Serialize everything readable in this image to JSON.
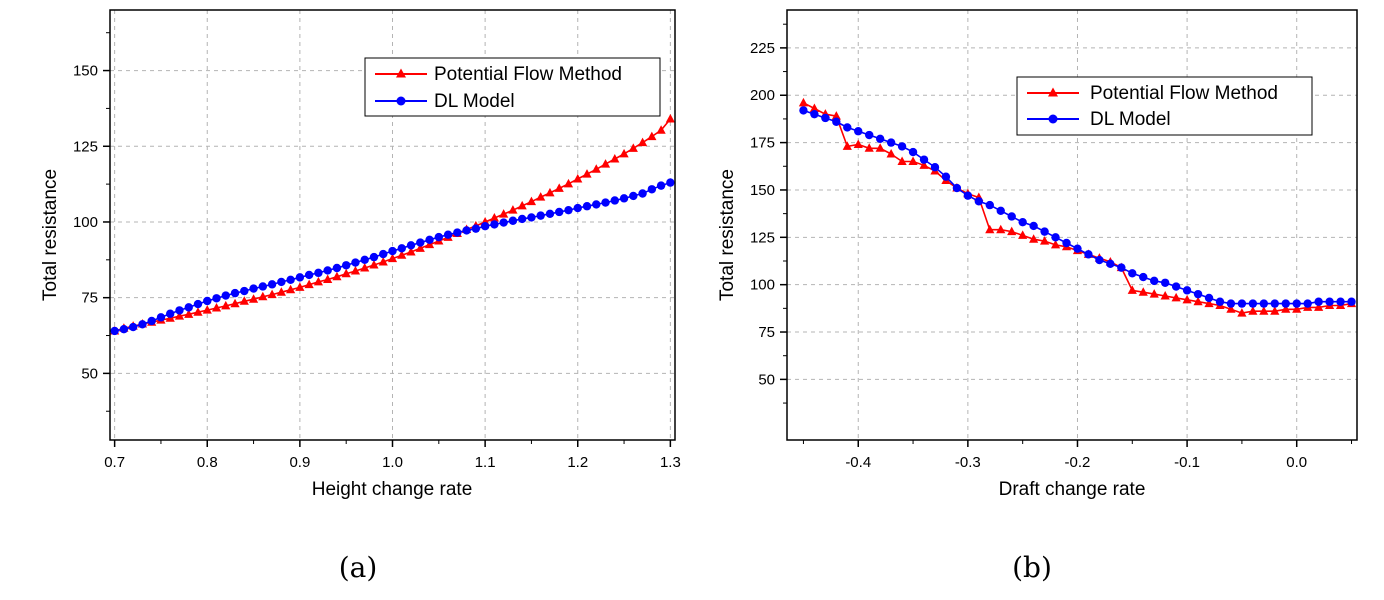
{
  "chart_data": [
    {
      "type": "line",
      "caption": "(a)",
      "xlabel": "Height change rate",
      "ylabel": "Total resistance",
      "xlim": [
        0.695,
        1.305
      ],
      "ylim": [
        28,
        170
      ],
      "xticks": [
        0.7,
        0.8,
        0.9,
        1.0,
        1.1,
        1.2,
        1.3
      ],
      "xtick_labels": [
        "0.7",
        "0.8",
        "0.9",
        "1.0",
        "1.1",
        "1.2",
        "1.3"
      ],
      "yticks": [
        50,
        75,
        100,
        125,
        150
      ],
      "ytick_labels": [
        "50",
        "75",
        "100",
        "125",
        "150"
      ],
      "grid": true,
      "legend_position": "top-right",
      "colors": {
        "Potential Flow Method": "#ff0000",
        "DL Model": "#0000ff"
      },
      "series": [
        {
          "name": "Potential Flow Method",
          "marker": "triangle",
          "x": [
            0.7,
            0.71,
            0.72,
            0.73,
            0.74,
            0.75,
            0.76,
            0.77,
            0.78,
            0.79,
            0.8,
            0.81,
            0.82,
            0.83,
            0.84,
            0.85,
            0.86,
            0.87,
            0.88,
            0.89,
            0.9,
            0.91,
            0.92,
            0.93,
            0.94,
            0.95,
            0.96,
            0.97,
            0.98,
            0.99,
            1.0,
            1.01,
            1.02,
            1.03,
            1.04,
            1.05,
            1.06,
            1.07,
            1.08,
            1.09,
            1.1,
            1.11,
            1.12,
            1.13,
            1.14,
            1.15,
            1.16,
            1.17,
            1.18,
            1.19,
            1.2,
            1.21,
            1.22,
            1.23,
            1.24,
            1.25,
            1.26,
            1.27,
            1.28,
            1.29,
            1.3
          ],
          "values": [
            64.0,
            64.9,
            65.6,
            66.3,
            66.9,
            67.6,
            68.2,
            68.9,
            69.5,
            70.2,
            70.9,
            71.6,
            72.3,
            73.0,
            73.8,
            74.5,
            75.3,
            76.0,
            76.8,
            77.6,
            78.4,
            79.3,
            80.2,
            81.0,
            81.9,
            82.9,
            83.8,
            84.8,
            85.8,
            86.8,
            87.9,
            89.0,
            90.1,
            91.3,
            92.5,
            93.7,
            94.9,
            96.2,
            97.5,
            98.7,
            100.0,
            101.3,
            102.6,
            103.9,
            105.3,
            106.7,
            108.2,
            109.6,
            111.1,
            112.6,
            114.2,
            115.8,
            117.4,
            119.1,
            120.8,
            122.5,
            124.3,
            126.2,
            128.2,
            130.3,
            134.0
          ]
        },
        {
          "name": "DL Model",
          "marker": "circle",
          "x": [
            0.7,
            0.71,
            0.72,
            0.73,
            0.74,
            0.75,
            0.76,
            0.77,
            0.78,
            0.79,
            0.8,
            0.81,
            0.82,
            0.83,
            0.84,
            0.85,
            0.86,
            0.87,
            0.88,
            0.89,
            0.9,
            0.91,
            0.92,
            0.93,
            0.94,
            0.95,
            0.96,
            0.97,
            0.98,
            0.99,
            1.0,
            1.01,
            1.02,
            1.03,
            1.04,
            1.05,
            1.06,
            1.07,
            1.08,
            1.09,
            1.1,
            1.11,
            1.12,
            1.13,
            1.14,
            1.15,
            1.16,
            1.17,
            1.18,
            1.19,
            1.2,
            1.21,
            1.22,
            1.23,
            1.24,
            1.25,
            1.26,
            1.27,
            1.28,
            1.29,
            1.3
          ],
          "values": [
            64.0,
            64.6,
            65.3,
            66.2,
            67.3,
            68.5,
            69.7,
            70.8,
            71.8,
            72.9,
            73.9,
            74.8,
            75.7,
            76.5,
            77.2,
            78.0,
            78.7,
            79.4,
            80.2,
            80.9,
            81.7,
            82.5,
            83.2,
            84.0,
            84.8,
            85.7,
            86.6,
            87.5,
            88.4,
            89.4,
            90.4,
            91.3,
            92.3,
            93.2,
            94.1,
            95.0,
            95.8,
            96.5,
            97.2,
            97.8,
            98.6,
            99.2,
            99.8,
            100.4,
            101.0,
            101.5,
            102.1,
            102.7,
            103.3,
            103.9,
            104.6,
            105.2,
            105.8,
            106.4,
            107.1,
            107.8,
            108.6,
            109.4,
            110.8,
            112.0,
            113.0
          ]
        }
      ]
    },
    {
      "type": "line",
      "caption": "(b)",
      "xlabel": "Draft change rate",
      "ylabel": "Total resistance",
      "xlim": [
        -0.465,
        0.055
      ],
      "ylim": [
        18,
        245
      ],
      "xticks": [
        -0.4,
        -0.3,
        -0.2,
        -0.1,
        0.0
      ],
      "xtick_labels": [
        "-0.4",
        "-0.3",
        "-0.2",
        "-0.1",
        "0.0"
      ],
      "yticks": [
        50,
        75,
        100,
        125,
        150,
        175,
        200,
        225
      ],
      "ytick_labels": [
        "50",
        "75",
        "100",
        "125",
        "150",
        "175",
        "200",
        "225"
      ],
      "grid": true,
      "legend_position": "top-right",
      "colors": {
        "Potential Flow Method": "#ff0000",
        "DL Model": "#0000ff"
      },
      "series": [
        {
          "name": "Potential Flow Method",
          "marker": "triangle",
          "x": [
            -0.45,
            -0.44,
            -0.43,
            -0.42,
            -0.41,
            -0.4,
            -0.39,
            -0.38,
            -0.37,
            -0.36,
            -0.35,
            -0.34,
            -0.33,
            -0.32,
            -0.31,
            -0.3,
            -0.29,
            -0.28,
            -0.27,
            -0.26,
            -0.25,
            -0.24,
            -0.23,
            -0.22,
            -0.21,
            -0.2,
            -0.19,
            -0.18,
            -0.17,
            -0.16,
            -0.15,
            -0.14,
            -0.13,
            -0.12,
            -0.11,
            -0.1,
            -0.09,
            -0.08,
            -0.07,
            -0.06,
            -0.05,
            -0.04,
            -0.03,
            -0.02,
            -0.01,
            0.0,
            0.01,
            0.02,
            0.03,
            0.04,
            0.05
          ],
          "values": [
            196,
            193,
            190,
            189,
            173,
            174,
            172,
            172,
            169,
            165,
            165,
            163,
            160,
            155,
            151,
            148,
            146,
            129,
            129,
            128,
            126,
            124,
            123,
            121,
            120,
            118,
            116,
            114,
            112,
            109,
            97,
            96,
            95,
            94,
            93,
            92,
            91,
            90,
            89,
            87,
            85,
            86,
            86,
            86,
            87,
            87,
            88,
            88,
            89,
            89,
            90
          ]
        },
        {
          "name": "DL Model",
          "marker": "circle",
          "x": [
            -0.45,
            -0.44,
            -0.43,
            -0.42,
            -0.41,
            -0.4,
            -0.39,
            -0.38,
            -0.37,
            -0.36,
            -0.35,
            -0.34,
            -0.33,
            -0.32,
            -0.31,
            -0.3,
            -0.29,
            -0.28,
            -0.27,
            -0.26,
            -0.25,
            -0.24,
            -0.23,
            -0.22,
            -0.21,
            -0.2,
            -0.19,
            -0.18,
            -0.17,
            -0.16,
            -0.15,
            -0.14,
            -0.13,
            -0.12,
            -0.11,
            -0.1,
            -0.09,
            -0.08,
            -0.07,
            -0.06,
            -0.05,
            -0.04,
            -0.03,
            -0.02,
            -0.01,
            0.0,
            0.01,
            0.02,
            0.03,
            0.04,
            0.05
          ],
          "values": [
            192,
            190,
            188,
            186,
            183,
            181,
            179,
            177,
            175,
            173,
            170,
            166,
            162,
            157,
            151,
            147,
            144,
            142,
            139,
            136,
            133,
            131,
            128,
            125,
            122,
            119,
            116,
            113,
            111,
            109,
            106,
            104,
            102,
            101,
            99,
            97,
            95,
            93,
            91,
            90,
            90,
            90,
            90,
            90,
            90,
            90,
            90,
            91,
            91,
            91,
            91
          ]
        }
      ]
    }
  ]
}
